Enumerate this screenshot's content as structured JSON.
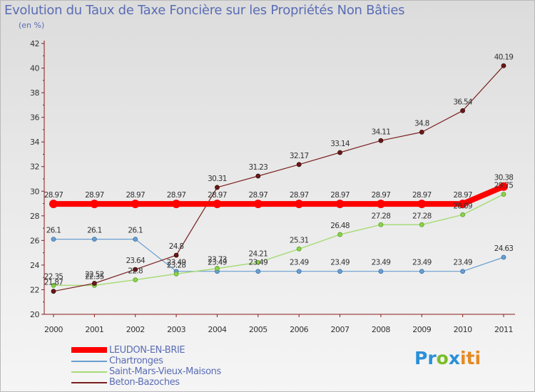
{
  "title": "Evolution du Taux de Taxe Foncière sur les Propriétés Non Bâties",
  "subtitle": "(en %)",
  "logo": {
    "p1": "Pr",
    "o": "o",
    "x": "x",
    "i": "iti"
  },
  "colors": {
    "title": "#5a6db5",
    "leudon": "#ff0000",
    "chartronges": "#6a9fd0",
    "saint_mars": "#a8dc78",
    "beton": "#7a2020"
  },
  "chart_data": {
    "type": "line",
    "title": "Evolution du Taux de Taxe Foncière sur les Propriétés Non Bâties",
    "ylabel": "(en %)",
    "xlabel": "",
    "x": [
      "2000",
      "2001",
      "2002",
      "2003",
      "2004",
      "2005",
      "2006",
      "2007",
      "2008",
      "2009",
      "2010",
      "2011"
    ],
    "ylim": [
      20,
      42
    ],
    "yticks": [
      20,
      22,
      24,
      26,
      28,
      30,
      32,
      34,
      36,
      38,
      40,
      42
    ],
    "grid": false,
    "legend_position": "bottom-left",
    "series": [
      {
        "name": "LEUDON-EN-BRIE",
        "color": "#ff0000",
        "values": [
          28.97,
          28.97,
          28.97,
          28.97,
          28.97,
          28.97,
          28.97,
          28.97,
          28.97,
          28.97,
          28.97,
          30.38
        ],
        "labels": [
          "28.97",
          "28.97",
          "28.97",
          "28.97",
          "28.97",
          "28.97",
          "28.97",
          "28.97",
          "28.97",
          "28.97",
          "28.97",
          "30.38"
        ]
      },
      {
        "name": "Chartronges",
        "color": "#6a9fd0",
        "values": [
          26.1,
          26.1,
          26.1,
          23.49,
          23.49,
          23.49,
          23.49,
          23.49,
          23.49,
          23.49,
          23.49,
          24.63
        ],
        "labels": [
          "26.1",
          "26.1",
          "26.1",
          "23.49",
          "23.49",
          "23.49",
          "23.49",
          "23.49",
          "23.49",
          "23.49",
          "23.49",
          "24.63"
        ]
      },
      {
        "name": "Saint-Mars-Vieux-Maisons",
        "color": "#a8dc78",
        "values": [
          22.35,
          22.35,
          22.8,
          23.28,
          23.73,
          24.21,
          25.31,
          26.48,
          27.28,
          27.28,
          28.09,
          29.75
        ],
        "labels": [
          "22.35",
          "22.35",
          "22.8",
          "23.28",
          "23.73",
          "24.21",
          "25.31",
          "26.48",
          "27.28",
          "27.28",
          "28.09",
          "29.75"
        ]
      },
      {
        "name": "Beton-Bazoches",
        "color": "#7a2020",
        "values": [
          21.87,
          22.52,
          23.64,
          24.8,
          30.31,
          31.23,
          32.17,
          33.14,
          34.11,
          34.8,
          36.54,
          40.19
        ],
        "labels": [
          "21.87",
          "22.52",
          "23.64",
          "24.8",
          "30.31",
          "31.23",
          "32.17",
          "33.14",
          "34.11",
          "34.8",
          "36.54",
          "40.19"
        ]
      }
    ]
  }
}
